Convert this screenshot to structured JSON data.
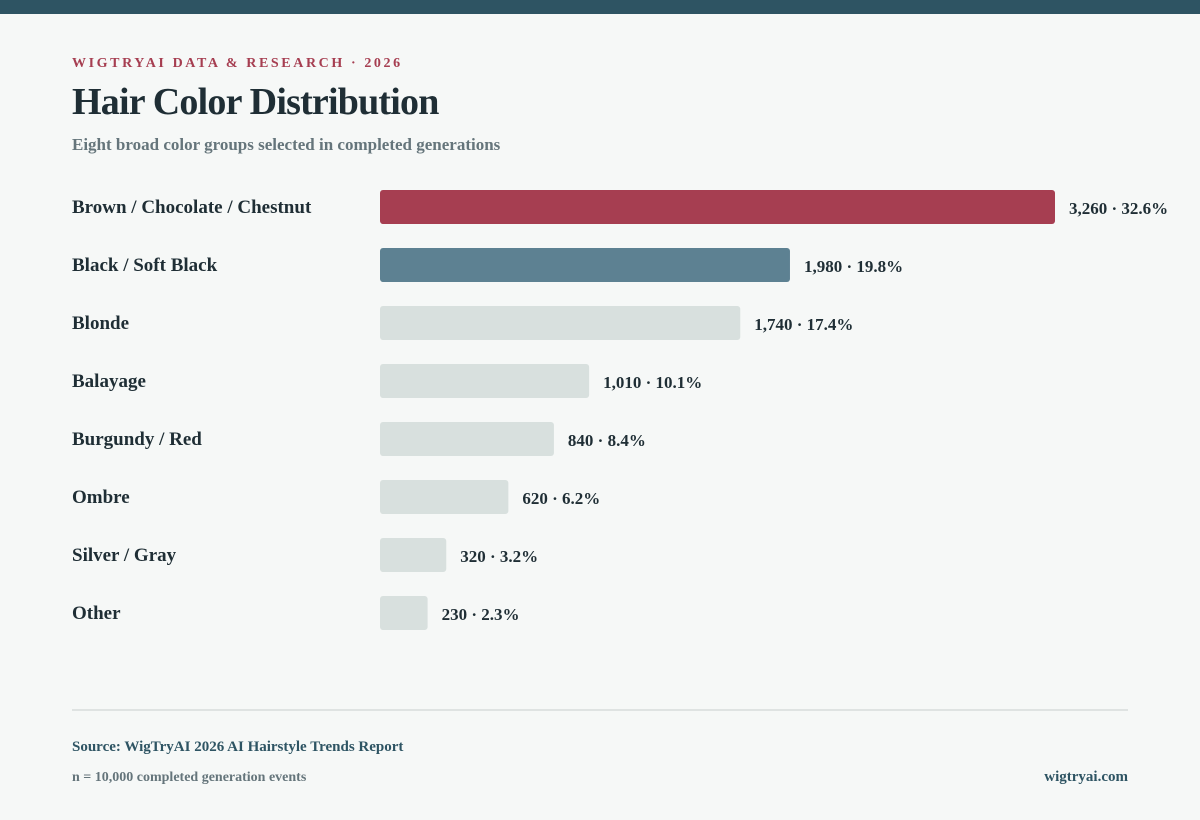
{
  "header": {
    "eyebrow": "WIGTRYAI DATA & RESEARCH · 2026",
    "title": "Hair Color Distribution",
    "subtitle": "Eight broad color groups selected in completed generations"
  },
  "chart_data": {
    "type": "bar",
    "orientation": "horizontal",
    "title": "Hair Color Distribution",
    "subtitle": "Eight broad color groups selected in completed generations",
    "categories": [
      "Brown / Chocolate / Chestnut",
      "Black / Soft Black",
      "Blonde",
      "Balayage",
      "Burgundy / Red",
      "Ombre",
      "Silver / Gray",
      "Other"
    ],
    "values": [
      3260,
      1980,
      1740,
      1010,
      840,
      620,
      320,
      230
    ],
    "percentages": [
      32.6,
      19.8,
      17.4,
      10.1,
      8.4,
      6.2,
      3.2,
      2.3
    ],
    "value_labels": [
      "3,260 · 32.6%",
      "1,980 · 19.8%",
      "1,740 · 17.4%",
      "1,010 · 10.1%",
      "840 · 8.4%",
      "620 · 6.2%",
      "320 · 3.2%",
      "230 · 2.3%"
    ],
    "colors": {
      "highlight_primary": "#a63e51",
      "highlight_secondary": "#5d8192",
      "default": "#d8e0de"
    },
    "bar_colors": [
      "#a63e51",
      "#5d8192",
      "#d8e0de",
      "#d8e0de",
      "#d8e0de",
      "#d8e0de",
      "#d8e0de",
      "#d8e0de"
    ],
    "grid": false,
    "legend": "none"
  },
  "footer": {
    "source": "Source: WigTryAI 2026 AI Hairstyle Trends Report",
    "sample": "n = 10,000 completed generation events",
    "site": "wigtryai.com"
  }
}
